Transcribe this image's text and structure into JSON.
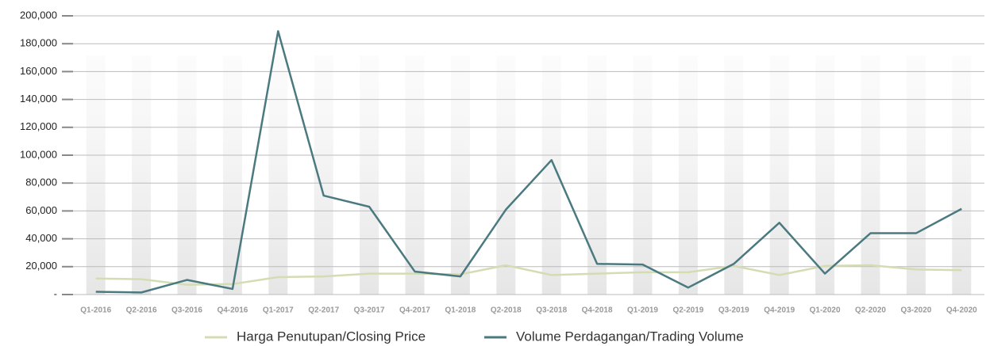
{
  "chart_data": {
    "type": "line",
    "categories": [
      "Q1-2016",
      "Q2-2016",
      "Q3-2016",
      "Q4-2016",
      "Q1-2017",
      "Q2-2017",
      "Q3-2017",
      "Q4-2017",
      "Q1-2018",
      "Q2-2018",
      "Q3-2018",
      "Q4-2018",
      "Q1-2019",
      "Q2-2019",
      "Q3-2019",
      "Q4-2019",
      "Q1-2020",
      "Q2-2020",
      "Q3-2020",
      "Q4-2020"
    ],
    "series": [
      {
        "name": "Harga Penutupan/Closing Price",
        "color": "#d4dcb4",
        "values": [
          11500,
          11000,
          7000,
          7500,
          12500,
          13000,
          15000,
          15000,
          14500,
          21000,
          14000,
          15000,
          16000,
          16000,
          20500,
          14000,
          20500,
          21000,
          18000,
          17500
        ]
      },
      {
        "name": "Volume Perdagangan/Trading Volume",
        "color": "#4a7a80",
        "values": [
          2000,
          1500,
          10500,
          4000,
          189000,
          71000,
          63000,
          16500,
          13000,
          61000,
          96500,
          22000,
          21500,
          5000,
          22000,
          51500,
          15000,
          44000,
          44000,
          61500
        ]
      }
    ],
    "ylim": [
      0,
      200000
    ],
    "yticks": [
      {
        "value": 0,
        "label": "-"
      },
      {
        "value": 20000,
        "label": "20,000"
      },
      {
        "value": 40000,
        "label": "40,000"
      },
      {
        "value": 60000,
        "label": "60,000"
      },
      {
        "value": 80000,
        "label": "80,000"
      },
      {
        "value": 100000,
        "label": "100,000"
      },
      {
        "value": 120000,
        "label": "120,000"
      },
      {
        "value": 140000,
        "label": "140,000"
      },
      {
        "value": 160000,
        "label": "160,000"
      },
      {
        "value": 180000,
        "label": "180,000"
      },
      {
        "value": 200000,
        "label": "200,000"
      }
    ],
    "grid": true
  }
}
